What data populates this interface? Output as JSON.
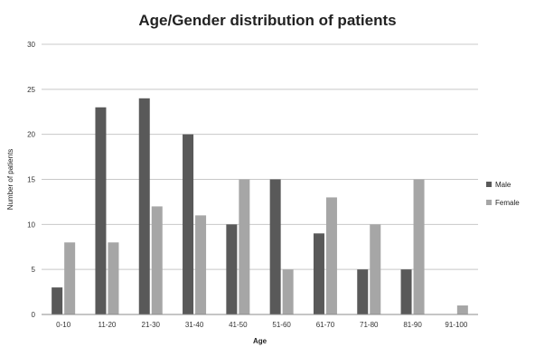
{
  "chart_data": {
    "type": "bar",
    "title": "Age/Gender distribution of patients",
    "xlabel": "Age",
    "ylabel": "Number of patients",
    "categories": [
      "0-10",
      "11-20",
      "21-30",
      "31-40",
      "41-50",
      "51-60",
      "61-70",
      "71-80",
      "81-90",
      "91-100"
    ],
    "series": [
      {
        "name": "Male",
        "color": "#595959",
        "values": [
          3,
          23,
          24,
          20,
          10,
          15,
          9,
          5,
          5,
          0
        ]
      },
      {
        "name": "Female",
        "color": "#a6a6a6",
        "values": [
          8,
          8,
          12,
          11,
          15,
          5,
          13,
          10,
          15,
          1
        ]
      }
    ],
    "ylim": [
      0,
      30
    ],
    "yticks": [
      0,
      5,
      10,
      15,
      20,
      25,
      30
    ],
    "grid": true,
    "legend": "right"
  }
}
